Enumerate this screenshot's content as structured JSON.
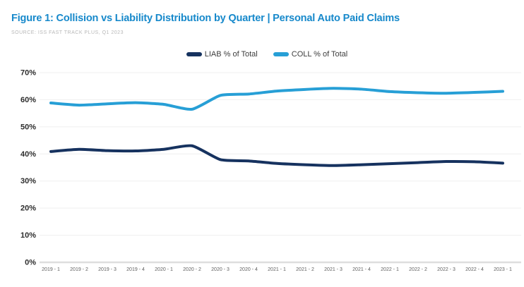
{
  "header": {
    "title": "Figure 1: Collision vs Liability Distribution by Quarter | Personal Auto Paid Claims",
    "title_color": "#1789cb",
    "source": "SOURCE: ISS FAST TRACK PLUS, Q1 2023"
  },
  "legend": {
    "items": [
      {
        "label": "LIAB % of Total",
        "color": "#16325f"
      },
      {
        "label": "COLL % of Total",
        "color": "#279fd6"
      }
    ]
  },
  "chart_data": {
    "type": "line",
    "title": "Collision vs Liability Distribution by Quarter | Personal Auto Paid Claims",
    "categories": [
      "2019 - 1",
      "2019 - 2",
      "2019 - 3",
      "2019 - 4",
      "2020 - 1",
      "2020 - 2",
      "2020 - 3",
      "2020 - 4",
      "2021 - 1",
      "2021 - 2",
      "2021 - 3",
      "2021 - 4",
      "2022 - 1",
      "2022 - 2",
      "2022 - 3",
      "2022 - 4",
      "2023 - 1"
    ],
    "series": [
      {
        "name": "LIAB % of Total",
        "color": "#16325f",
        "values": [
          40.9,
          41.7,
          41.2,
          41.1,
          41.7,
          43.0,
          37.9,
          37.4,
          36.5,
          36.0,
          35.7,
          36.0,
          36.4,
          36.8,
          37.2,
          37.1,
          36.6
        ]
      },
      {
        "name": "COLL % of Total",
        "color": "#279fd6",
        "values": [
          58.8,
          58.0,
          58.5,
          58.9,
          58.3,
          56.5,
          61.6,
          62.1,
          63.2,
          63.8,
          64.2,
          63.9,
          63.0,
          62.6,
          62.4,
          62.7,
          63.1
        ]
      }
    ],
    "ylim": [
      0,
      70
    ],
    "ytick_step": 10,
    "ytick_format": "percent",
    "grid": "horizontal",
    "legend_position": "top-center"
  }
}
